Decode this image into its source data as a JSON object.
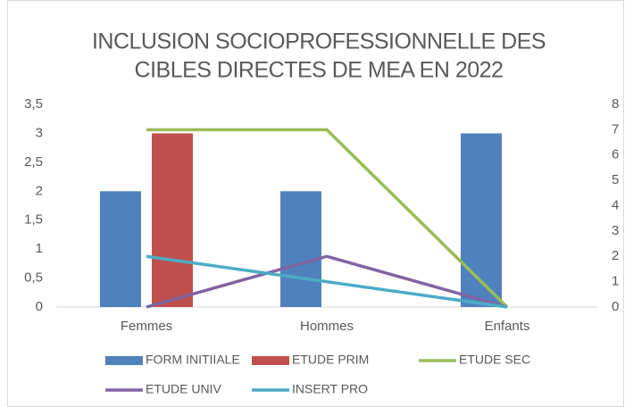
{
  "chart_data": {
    "type": "bar",
    "title": [
      "INCLUSION SOCIOPROFESSIONNELLE DES",
      "CIBLES DIRECTES DE MEA EN 2022"
    ],
    "categories": [
      "Femmes",
      "Hommes",
      "Enfants"
    ],
    "series": [
      {
        "name": "FORM INITIIALE",
        "type": "bar",
        "color": "#4f81bd",
        "values": [
          2,
          2,
          3
        ]
      },
      {
        "name": "ETUDE PRIM",
        "type": "bar",
        "color": "#c0504d",
        "values": [
          3,
          0,
          0
        ]
      },
      {
        "name": "ETUDE SEC",
        "type": "line",
        "axis": "y2",
        "color": "#9bbb59",
        "values": [
          7,
          7,
          0
        ]
      },
      {
        "name": "ETUDE UNIV",
        "type": "line",
        "axis": "y2",
        "color": "#8064a2",
        "values": [
          0,
          2,
          0
        ]
      },
      {
        "name": "INSERT PRO",
        "type": "line",
        "axis": "y2",
        "color": "#4bacc6",
        "values": [
          2,
          1,
          0
        ]
      }
    ],
    "ylim": [
      0,
      3.5
    ],
    "yticks": [
      0,
      {
        "value": 0.5,
        "label": "0,5"
      },
      1,
      {
        "value": 1.5,
        "label": "1,5"
      },
      2,
      {
        "value": 2.5,
        "label": "2,5"
      },
      3,
      {
        "value": 3.5,
        "label": "3,5"
      }
    ],
    "y2lim": [
      0,
      8
    ],
    "y2ticks": [
      0,
      1,
      2,
      3,
      4,
      5,
      6,
      7,
      8
    ],
    "grid": false,
    "legend": "bottom"
  }
}
